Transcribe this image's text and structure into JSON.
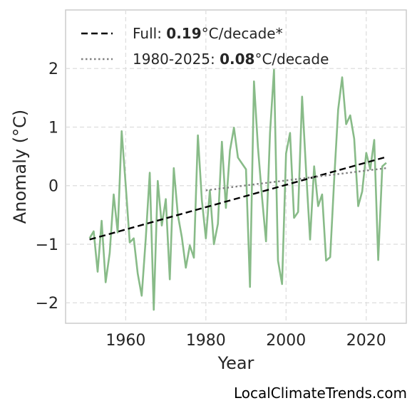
{
  "chart_data": {
    "type": "line",
    "xlabel": "Year",
    "ylabel": "Anomaly (°C)",
    "xlim": [
      1945,
      2030
    ],
    "ylim": [
      -2.35,
      3.0
    ],
    "xticks": [
      1960,
      1980,
      2000,
      2020
    ],
    "yticks": [
      -2,
      -1,
      0,
      1,
      2
    ],
    "ytick_labels": [
      "−2",
      "−1",
      "0",
      "1",
      "2"
    ],
    "grid": true,
    "legend_position": "top-left",
    "series": [
      {
        "style": "solid",
        "color": "#88bb88",
        "x": [
          1951,
          1952,
          1953,
          1954,
          1955,
          1956,
          1957,
          1958,
          1959,
          1960,
          1961,
          1962,
          1963,
          1964,
          1965,
          1966,
          1967,
          1968,
          1969,
          1970,
          1971,
          1972,
          1973,
          1974,
          1975,
          1976,
          1977,
          1978,
          1979,
          1980,
          1981,
          1982,
          1983,
          1984,
          1985,
          1986,
          1987,
          1988,
          1989,
          1990,
          1991,
          1992,
          1993,
          1994,
          1995,
          1996,
          1997,
          1998,
          1999,
          2000,
          2001,
          2002,
          2003,
          2004,
          2005,
          2006,
          2007,
          2008,
          2009,
          2010,
          2011,
          2012,
          2013,
          2014,
          2015,
          2016,
          2017,
          2018,
          2019,
          2020,
          2021,
          2022,
          2023,
          2024,
          2025
        ],
        "y": [
          -0.9,
          -0.78,
          -1.47,
          -0.6,
          -1.65,
          -1.15,
          -0.15,
          -0.8,
          0.93,
          0.0,
          -0.97,
          -0.9,
          -1.5,
          -1.88,
          -0.9,
          0.22,
          -2.12,
          0.08,
          -0.68,
          -0.23,
          -1.6,
          0.3,
          -0.5,
          -0.88,
          -1.4,
          -1.02,
          -1.23,
          0.86,
          -0.25,
          -0.9,
          -0.08,
          -1.0,
          -0.65,
          0.75,
          -0.38,
          0.6,
          0.99,
          0.48,
          0.38,
          0.28,
          -1.73,
          1.78,
          0.65,
          -0.2,
          -0.95,
          0.9,
          1.98,
          -1.28,
          -1.68,
          0.55,
          0.9,
          -0.55,
          -0.45,
          1.52,
          0.25,
          -0.92,
          0.33,
          -0.35,
          -0.15,
          -1.28,
          -1.22,
          0.1,
          1.3,
          1.85,
          1.05,
          1.2,
          0.8,
          -0.35,
          -0.1,
          0.56,
          0.28,
          0.78,
          -1.27,
          0.33,
          0.39
        ]
      },
      {
        "style": "dashed",
        "color": "#000000",
        "x": [
          1951,
          2025
        ],
        "y": [
          -0.92,
          0.49
        ]
      },
      {
        "style": "dotted",
        "color": "#808080",
        "x": [
          1980,
          2025
        ],
        "y": [
          -0.08,
          0.3
        ]
      }
    ]
  },
  "legend": {
    "full_prefix": "Full: ",
    "full_value": "0.19",
    "full_suffix": "°C/decade*",
    "recent_prefix": "1980-2025: ",
    "recent_value": "0.08",
    "recent_suffix": "°C/decade"
  },
  "source": "LocalClimateTrends.com"
}
